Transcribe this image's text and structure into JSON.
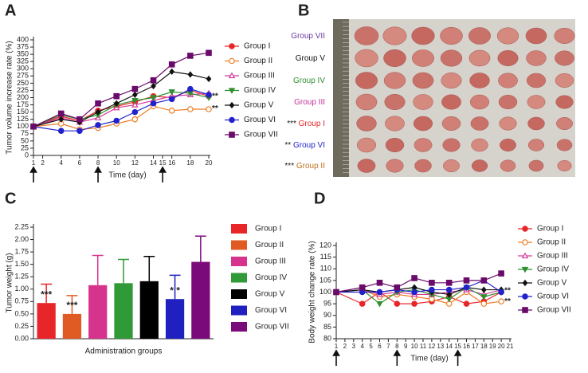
{
  "chart_data": [
    {
      "type": "line",
      "panel_label": "A",
      "y_label": "Tumor volume increase rate (%)",
      "x_label": "Time (day)",
      "x": [
        1,
        4,
        6,
        8,
        10,
        12,
        14,
        16,
        18,
        20
      ],
      "xlim": [
        1,
        20
      ],
      "xticks": [
        1,
        2,
        4,
        6,
        8,
        10,
        12,
        14,
        15,
        16,
        18,
        20
      ],
      "ylim": [
        0,
        400
      ],
      "yticks": [
        0,
        25,
        50,
        75,
        100,
        125,
        150,
        175,
        200,
        225,
        250,
        275,
        300,
        325,
        350,
        375,
        400
      ],
      "arrows": [
        1,
        8,
        15
      ],
      "series": [
        {
          "name": "Group I",
          "color": "#e8262a",
          "marker": "circle",
          "values": [
            100,
            135,
            120,
            155,
            170,
            185,
            205,
            200,
            225,
            205
          ]
        },
        {
          "name": "Group II",
          "color": "#f07d22",
          "marker": "circle-open",
          "values": [
            100,
            110,
            90,
            95,
            110,
            125,
            170,
            155,
            160,
            160
          ]
        },
        {
          "name": "Group III",
          "color": "#d63a9a",
          "marker": "triangle-open",
          "values": [
            100,
            130,
            115,
            130,
            165,
            175,
            190,
            205,
            210,
            215
          ]
        },
        {
          "name": "Group IV",
          "color": "#2f8f2f",
          "marker": "triangle-down",
          "values": [
            100,
            140,
            125,
            140,
            175,
            190,
            200,
            220,
            215,
            200
          ]
        },
        {
          "name": "Group V",
          "color": "#111111",
          "marker": "diamond",
          "values": [
            100,
            125,
            115,
            150,
            180,
            210,
            240,
            290,
            280,
            265
          ]
        },
        {
          "name": "Group VI",
          "color": "#2222cc",
          "marker": "circle",
          "values": [
            100,
            85,
            85,
            105,
            120,
            150,
            180,
            195,
            230,
            210
          ]
        },
        {
          "name": "Group VII",
          "color": "#6a0a6a",
          "marker": "square",
          "values": [
            100,
            145,
            125,
            180,
            205,
            230,
            260,
            315,
            345,
            355
          ]
        }
      ],
      "annotations": [
        {
          "text": "**",
          "x": 20,
          "y": 205
        },
        {
          "text": "**",
          "x": 20,
          "y": 162
        }
      ]
    },
    {
      "type": "photo",
      "panel_label": "B",
      "rows": [
        {
          "marker": null,
          "label": "Group VII",
          "color": "#6a3aa0"
        },
        {
          "marker": null,
          "label": "Group V",
          "color": "#111111"
        },
        {
          "marker": null,
          "label": "Group IV",
          "color": "#2f8f2f"
        },
        {
          "marker": null,
          "label": "Group III",
          "color": "#c0309a"
        },
        {
          "marker": "***",
          "label": "Group I",
          "color": "#e8262a"
        },
        {
          "marker": "**",
          "label": "Group VI",
          "color": "#2222cc"
        },
        {
          "marker": "***",
          "label": "Group II",
          "color": "#c07020"
        }
      ]
    },
    {
      "type": "bar",
      "panel_label": "C",
      "y_label": "Tumor weight (g)",
      "x_label": "Administration groups",
      "categories": [
        "Group I",
        "Group II",
        "Group III",
        "Group IV",
        "Group V",
        "Group VI",
        "Group VII"
      ],
      "colors": [
        "#e8262a",
        "#e05a24",
        "#d6338c",
        "#2f9a37",
        "#000000",
        "#2020c0",
        "#7a0a7a"
      ],
      "values": [
        0.72,
        0.5,
        1.08,
        1.12,
        1.16,
        0.8,
        1.55
      ],
      "errors": [
        0.38,
        0.37,
        0.6,
        0.48,
        0.5,
        0.48,
        0.52
      ],
      "value_annotations": [
        "***",
        "***",
        null,
        null,
        null,
        "* *",
        null
      ],
      "ylim": [
        0,
        2.25
      ],
      "yticks": [
        {
          "value": 0,
          "label": "0.00"
        },
        {
          "value": 0.25,
          "label": "0.25"
        },
        {
          "value": 0.5,
          "label": "0.50"
        },
        {
          "value": 0.75,
          "label": "0.75"
        },
        {
          "value": 1,
          "label": "1.00"
        },
        {
          "value": 1.25,
          "label": "1.25"
        },
        {
          "value": 1.5,
          "label": "1.50"
        },
        {
          "value": 1.75,
          "label": "1.75"
        },
        {
          "value": 2,
          "label": "2.00"
        },
        {
          "value": 2.25,
          "label": "2.25"
        }
      ]
    },
    {
      "type": "line",
      "panel_label": "D",
      "y_label": "Body weight change rate (%)",
      "x_label": "Time (day)",
      "x": [
        1,
        4,
        6,
        8,
        10,
        12,
        14,
        16,
        18,
        20
      ],
      "xlim": [
        1,
        21
      ],
      "xticks": [
        1,
        2,
        3,
        4,
        5,
        6,
        7,
        8,
        9,
        10,
        11,
        12,
        13,
        14,
        15,
        16,
        17,
        18,
        19,
        20,
        21
      ],
      "ylim": [
        80,
        120
      ],
      "yticks": [
        80,
        85,
        90,
        95,
        100,
        105,
        110,
        115,
        120
      ],
      "arrows": [
        1,
        8,
        15
      ],
      "series": [
        {
          "name": "Group I",
          "color": "#e8262a",
          "marker": "circle",
          "values": [
            100,
            95,
            100,
            95,
            95,
            96,
            98,
            95,
            96,
            100
          ]
        },
        {
          "name": "Group II",
          "color": "#f07d22",
          "marker": "circle-open",
          "values": [
            100,
            101,
            98,
            99,
            98,
            97,
            95,
            100,
            95,
            96
          ]
        },
        {
          "name": "Group III",
          "color": "#d63a9a",
          "marker": "triangle-open",
          "values": [
            100,
            101,
            99,
            100,
            99,
            99,
            100,
            101,
            99,
            101
          ]
        },
        {
          "name": "Group IV",
          "color": "#2f8f2f",
          "marker": "triangle-down",
          "values": [
            100,
            101,
            95,
            100,
            101,
            99,
            97,
            102,
            98,
            100
          ]
        },
        {
          "name": "Group V",
          "color": "#111111",
          "marker": "diamond",
          "values": [
            100,
            101,
            100,
            101,
            102,
            100,
            99,
            102,
            101,
            101
          ]
        },
        {
          "name": "Group VI",
          "color": "#2222cc",
          "marker": "circle",
          "values": [
            100,
            100,
            100,
            101,
            100,
            101,
            101,
            102,
            105,
            100
          ]
        },
        {
          "name": "Group VII",
          "color": "#6a0a6a",
          "marker": "square",
          "values": [
            100,
            102,
            104,
            102,
            106,
            104,
            104,
            105,
            105,
            108
          ]
        }
      ],
      "annotations": [
        {
          "text": "**",
          "x": 20,
          "y": 100.5
        },
        {
          "text": "**",
          "x": 20,
          "y": 96
        }
      ]
    }
  ]
}
